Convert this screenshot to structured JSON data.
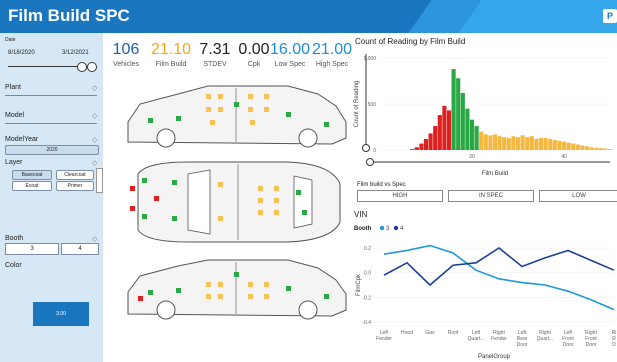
{
  "header": {
    "title": "Film Build SPC",
    "logo_text": "P"
  },
  "filters": {
    "date_label": "Date",
    "date_start": "8/18/2020",
    "date_end": "3/12/2021",
    "plant_label": "Plant",
    "model_label": "Model",
    "modelyear_label": "ModelYear",
    "modelyear_selected": "2020",
    "layer_label": "Layer",
    "layer_options": [
      "Basecoat",
      "Clearcoat",
      "Ecoat",
      "Primer"
    ],
    "booth_label": "Booth",
    "booth_options": [
      "3",
      "4"
    ],
    "color_label": "Color",
    "color_swatch_text": "3.00"
  },
  "kpis": [
    {
      "value": "106",
      "label": "Vehicles",
      "color": "#1f5fa8"
    },
    {
      "value": "21.10",
      "label": "Film Build",
      "color": "#f2a81d"
    },
    {
      "value": "7.31",
      "label": "STDEV",
      "color": "#222222"
    },
    {
      "value": "0.00",
      "label": "Cpk",
      "color": "#222222"
    },
    {
      "value": "16.00",
      "label": "Low Spec",
      "color": "#1c8fd9"
    },
    {
      "value": "21.00",
      "label": "High Spec",
      "color": "#1c8fd9"
    }
  ],
  "spec_filter": {
    "label": "Film build vs Spec",
    "buttons": [
      "HIGH",
      "IN SPEC",
      "LOW"
    ]
  },
  "vin_label": "VIN",
  "chart_data": [
    {
      "type": "bar",
      "title": "Count of Reading by Film Build",
      "xlabel": "Film Build",
      "ylabel": "Count of Reading",
      "ylim": [
        0,
        1000
      ],
      "xlim": [
        0,
        50
      ],
      "x_ticks": [
        20,
        40
      ],
      "y_ticks": [
        0,
        500,
        1000
      ],
      "colors": {
        "low": "#e02020",
        "in_spec": "#2aa844",
        "high": "#f5b942"
      },
      "x": [
        7,
        8,
        9,
        10,
        11,
        12,
        13,
        14,
        15,
        16,
        17,
        18,
        19,
        20,
        21,
        22,
        23,
        24,
        25,
        26,
        27,
        28,
        29,
        30,
        31,
        32,
        33,
        34,
        35,
        36,
        37,
        38,
        39,
        40,
        41,
        42,
        43,
        44,
        45,
        46,
        47,
        48,
        49,
        50
      ],
      "values": [
        10,
        30,
        70,
        120,
        180,
        260,
        380,
        480,
        430,
        880,
        780,
        620,
        450,
        330,
        260,
        200,
        170,
        160,
        170,
        150,
        140,
        130,
        150,
        140,
        160,
        140,
        150,
        120,
        130,
        130,
        120,
        110,
        100,
        90,
        80,
        70,
        60,
        50,
        40,
        30,
        25,
        20,
        15,
        10
      ],
      "low_spec": 16,
      "high_spec": 21
    },
    {
      "type": "line",
      "xlabel": "PanelGroup",
      "ylabel": "FilmCpk",
      "legend_title": "Booth",
      "ylim": [
        -0.4,
        0.2
      ],
      "y_ticks": [
        0.2,
        0.0,
        -0.2,
        -0.4
      ],
      "categories": [
        "Left Fender",
        "Hood",
        "Gas",
        "Roof",
        "Left Quart...",
        "Right Fender",
        "Left Rear Door",
        "Right Quart...",
        "Left Front Door",
        "Right Front Door",
        "Right Rear D..."
      ],
      "category_labels": [
        [
          "Left",
          "Fender"
        ],
        [
          "Hood"
        ],
        [
          "Gas"
        ],
        [
          "Roof"
        ],
        [
          "Left",
          "Quart..."
        ],
        [
          "Right",
          "Fender"
        ],
        [
          "Left",
          "Rear",
          "Door"
        ],
        [
          "Right",
          "Quart..."
        ],
        [
          "Left",
          "Front",
          "Door"
        ],
        [
          "Right",
          "Front",
          "Door"
        ],
        [
          "Ri",
          "R",
          "D"
        ]
      ],
      "series": [
        {
          "name": "3",
          "color": "#1f9ad6",
          "values": [
            0.15,
            0.18,
            0.22,
            0.16,
            0.02,
            -0.05,
            -0.08,
            -0.1,
            -0.15,
            -0.22,
            -0.3
          ]
        },
        {
          "name": "4",
          "color": "#1c3f95",
          "values": [
            -0.02,
            0.08,
            -0.1,
            0.06,
            0.08,
            0.2,
            0.05,
            0.12,
            0.18,
            0.1,
            0.02
          ]
        }
      ]
    }
  ]
}
